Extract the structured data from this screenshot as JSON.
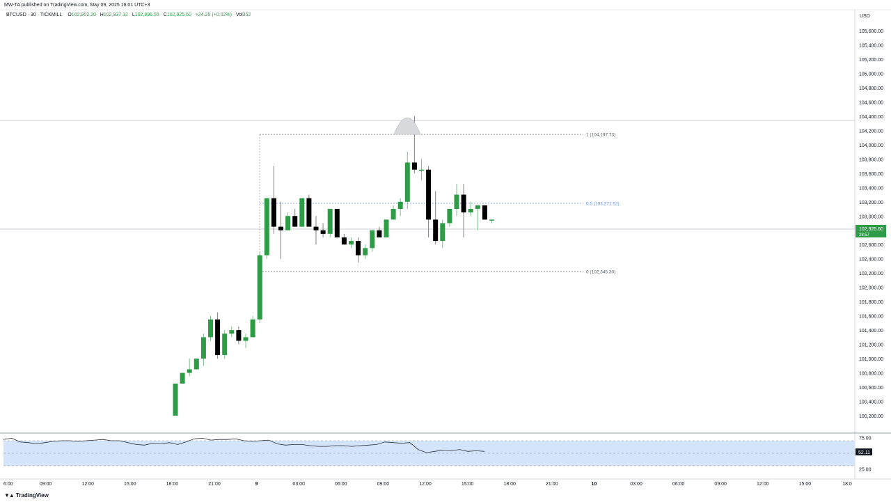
{
  "header": {
    "published": "MW-TA published on TradingView.com, May 09, 2025 16:01 UTC+3"
  },
  "legend": {
    "symbol": "BTCUSD · 30 · TICKMILL",
    "o_label": "O",
    "o_value": "102,902.20",
    "h_label": "H",
    "h_value": "102,937.32",
    "l_label": "L",
    "l_value": "102,896.55",
    "c_label": "C",
    "c_value": "102,925.60",
    "change": "+24.25 (+0.02%)",
    "vol_label": "Vol",
    "vol_value": "352"
  },
  "price_axis": {
    "currency": "USD",
    "ticks": [
      "105,600.00",
      "105,400.00",
      "105,200.00",
      "105,000.00",
      "104,800.00",
      "104,600.00",
      "104,400.00",
      "104,200.00",
      "104,000.00",
      "103,800.00",
      "103,600.00",
      "103,400.00",
      "103,200.00",
      "103,000.00",
      "102,800.00",
      "102,600.00",
      "102,400.00",
      "102,200.00",
      "102,000.00",
      "101,800.00",
      "101,600.00",
      "101,400.00",
      "101,200.00",
      "101,000.00",
      "100,800.00",
      "100,600.00",
      "100,400.00",
      "100,200.00"
    ],
    "current_price": "102,925.60",
    "countdown": "28:57"
  },
  "time_axis": {
    "labels": [
      "6:00",
      "09:00",
      "12:00",
      "15:00",
      "18:00",
      "21:00",
      "9",
      "03:00",
      "06:00",
      "09:00",
      "12:00",
      "15:00",
      "18:00",
      "21:00",
      "10",
      "03:00",
      "06:00",
      "09:00",
      "12:00",
      "15:00",
      "18:0"
    ],
    "bold": [
      "9",
      "10"
    ]
  },
  "fib": {
    "level_1": "1 (104,197.73)",
    "level_05": "0.5 (103,271.52)",
    "level_0": "0 (102,345.30)"
  },
  "rsi": {
    "ticks": [
      "75.00",
      "25.00"
    ],
    "current": "52.11"
  },
  "colors": {
    "up": "#2e9c47",
    "down": "#000000",
    "fib_mid": "#5b8fe0",
    "rsi_band": "#d4e5fb",
    "current_price_bg": "#2e9c47"
  },
  "footer": {
    "brand": "TradingView"
  },
  "chart_data": {
    "type": "candlestick",
    "candles_ohlc": [
      [
        100200,
        100650,
        100200,
        100650
      ],
      [
        100650,
        100800,
        100650,
        100800
      ],
      [
        100800,
        101000,
        100750,
        100850
      ],
      [
        100850,
        101000,
        100850,
        101000
      ],
      [
        101000,
        101350,
        100900,
        101300
      ],
      [
        101300,
        101600,
        101250,
        101550
      ],
      [
        101550,
        101650,
        101000,
        101050
      ],
      [
        101050,
        101400,
        101000,
        101350
      ],
      [
        101350,
        101450,
        101300,
        101400
      ],
      [
        101400,
        101450,
        101200,
        101250
      ],
      [
        101250,
        101350,
        101150,
        101300
      ],
      [
        101300,
        101600,
        101300,
        101550
      ],
      [
        101550,
        102500,
        101500,
        102450
      ],
      [
        102450,
        102850,
        102400,
        103250
      ],
      [
        103250,
        103700,
        102750,
        102850
      ],
      [
        102850,
        103200,
        102400,
        102800
      ],
      [
        102800,
        103050,
        102800,
        103000
      ],
      [
        103000,
        103100,
        102850,
        102850
      ],
      [
        102850,
        103200,
        102850,
        103250
      ],
      [
        103250,
        103300,
        102850,
        102850
      ],
      [
        102850,
        103000,
        102600,
        102800
      ],
      [
        102800,
        102900,
        102700,
        102750
      ],
      [
        102750,
        103100,
        102700,
        103100
      ],
      [
        103100,
        103100,
        102700,
        102700
      ],
      [
        102700,
        102750,
        102600,
        102600
      ],
      [
        102600,
        102700,
        102550,
        102650
      ],
      [
        102650,
        102700,
        102350,
        102450
      ],
      [
        102450,
        102600,
        102400,
        102550
      ],
      [
        102550,
        102800,
        102500,
        102800
      ],
      [
        102800,
        102850,
        102700,
        102700
      ],
      [
        102700,
        102950,
        102700,
        102950
      ],
      [
        102950,
        103150,
        102950,
        103100
      ],
      [
        103100,
        103250,
        103000,
        103200
      ],
      [
        103200,
        103900,
        103100,
        103750
      ],
      [
        103750,
        104400,
        103600,
        103650
      ],
      [
        103650,
        103800,
        103500,
        103650
      ],
      [
        103650,
        103700,
        102700,
        102950
      ],
      [
        102950,
        103350,
        102600,
        102650
      ],
      [
        102650,
        102950,
        102550,
        102900
      ],
      [
        102900,
        103100,
        102850,
        103100
      ],
      [
        103100,
        103450,
        103000,
        103300
      ],
      [
        103300,
        103450,
        102700,
        103050
      ],
      [
        103050,
        103200,
        103000,
        103100
      ],
      [
        103100,
        103150,
        102800,
        103150
      ],
      [
        103150,
        103150,
        102950,
        102950
      ],
      [
        102950,
        102950,
        102900,
        102950
      ]
    ],
    "rsi_values": [
      72,
      74,
      68,
      67,
      65,
      67,
      69,
      70,
      70,
      69,
      70,
      71,
      72,
      70,
      70,
      67,
      64,
      63,
      66,
      65,
      67,
      64,
      68,
      73,
      74,
      71,
      72,
      72,
      73,
      70,
      69,
      70,
      71,
      65,
      63,
      64,
      64,
      62,
      61,
      61,
      62,
      62,
      61,
      62,
      63,
      64,
      68,
      67,
      66,
      67,
      56,
      51,
      53,
      55,
      54,
      56,
      53,
      54,
      53
    ],
    "rsi_ylim": [
      0,
      100
    ],
    "ylim": [
      100200,
      105600
    ]
  }
}
